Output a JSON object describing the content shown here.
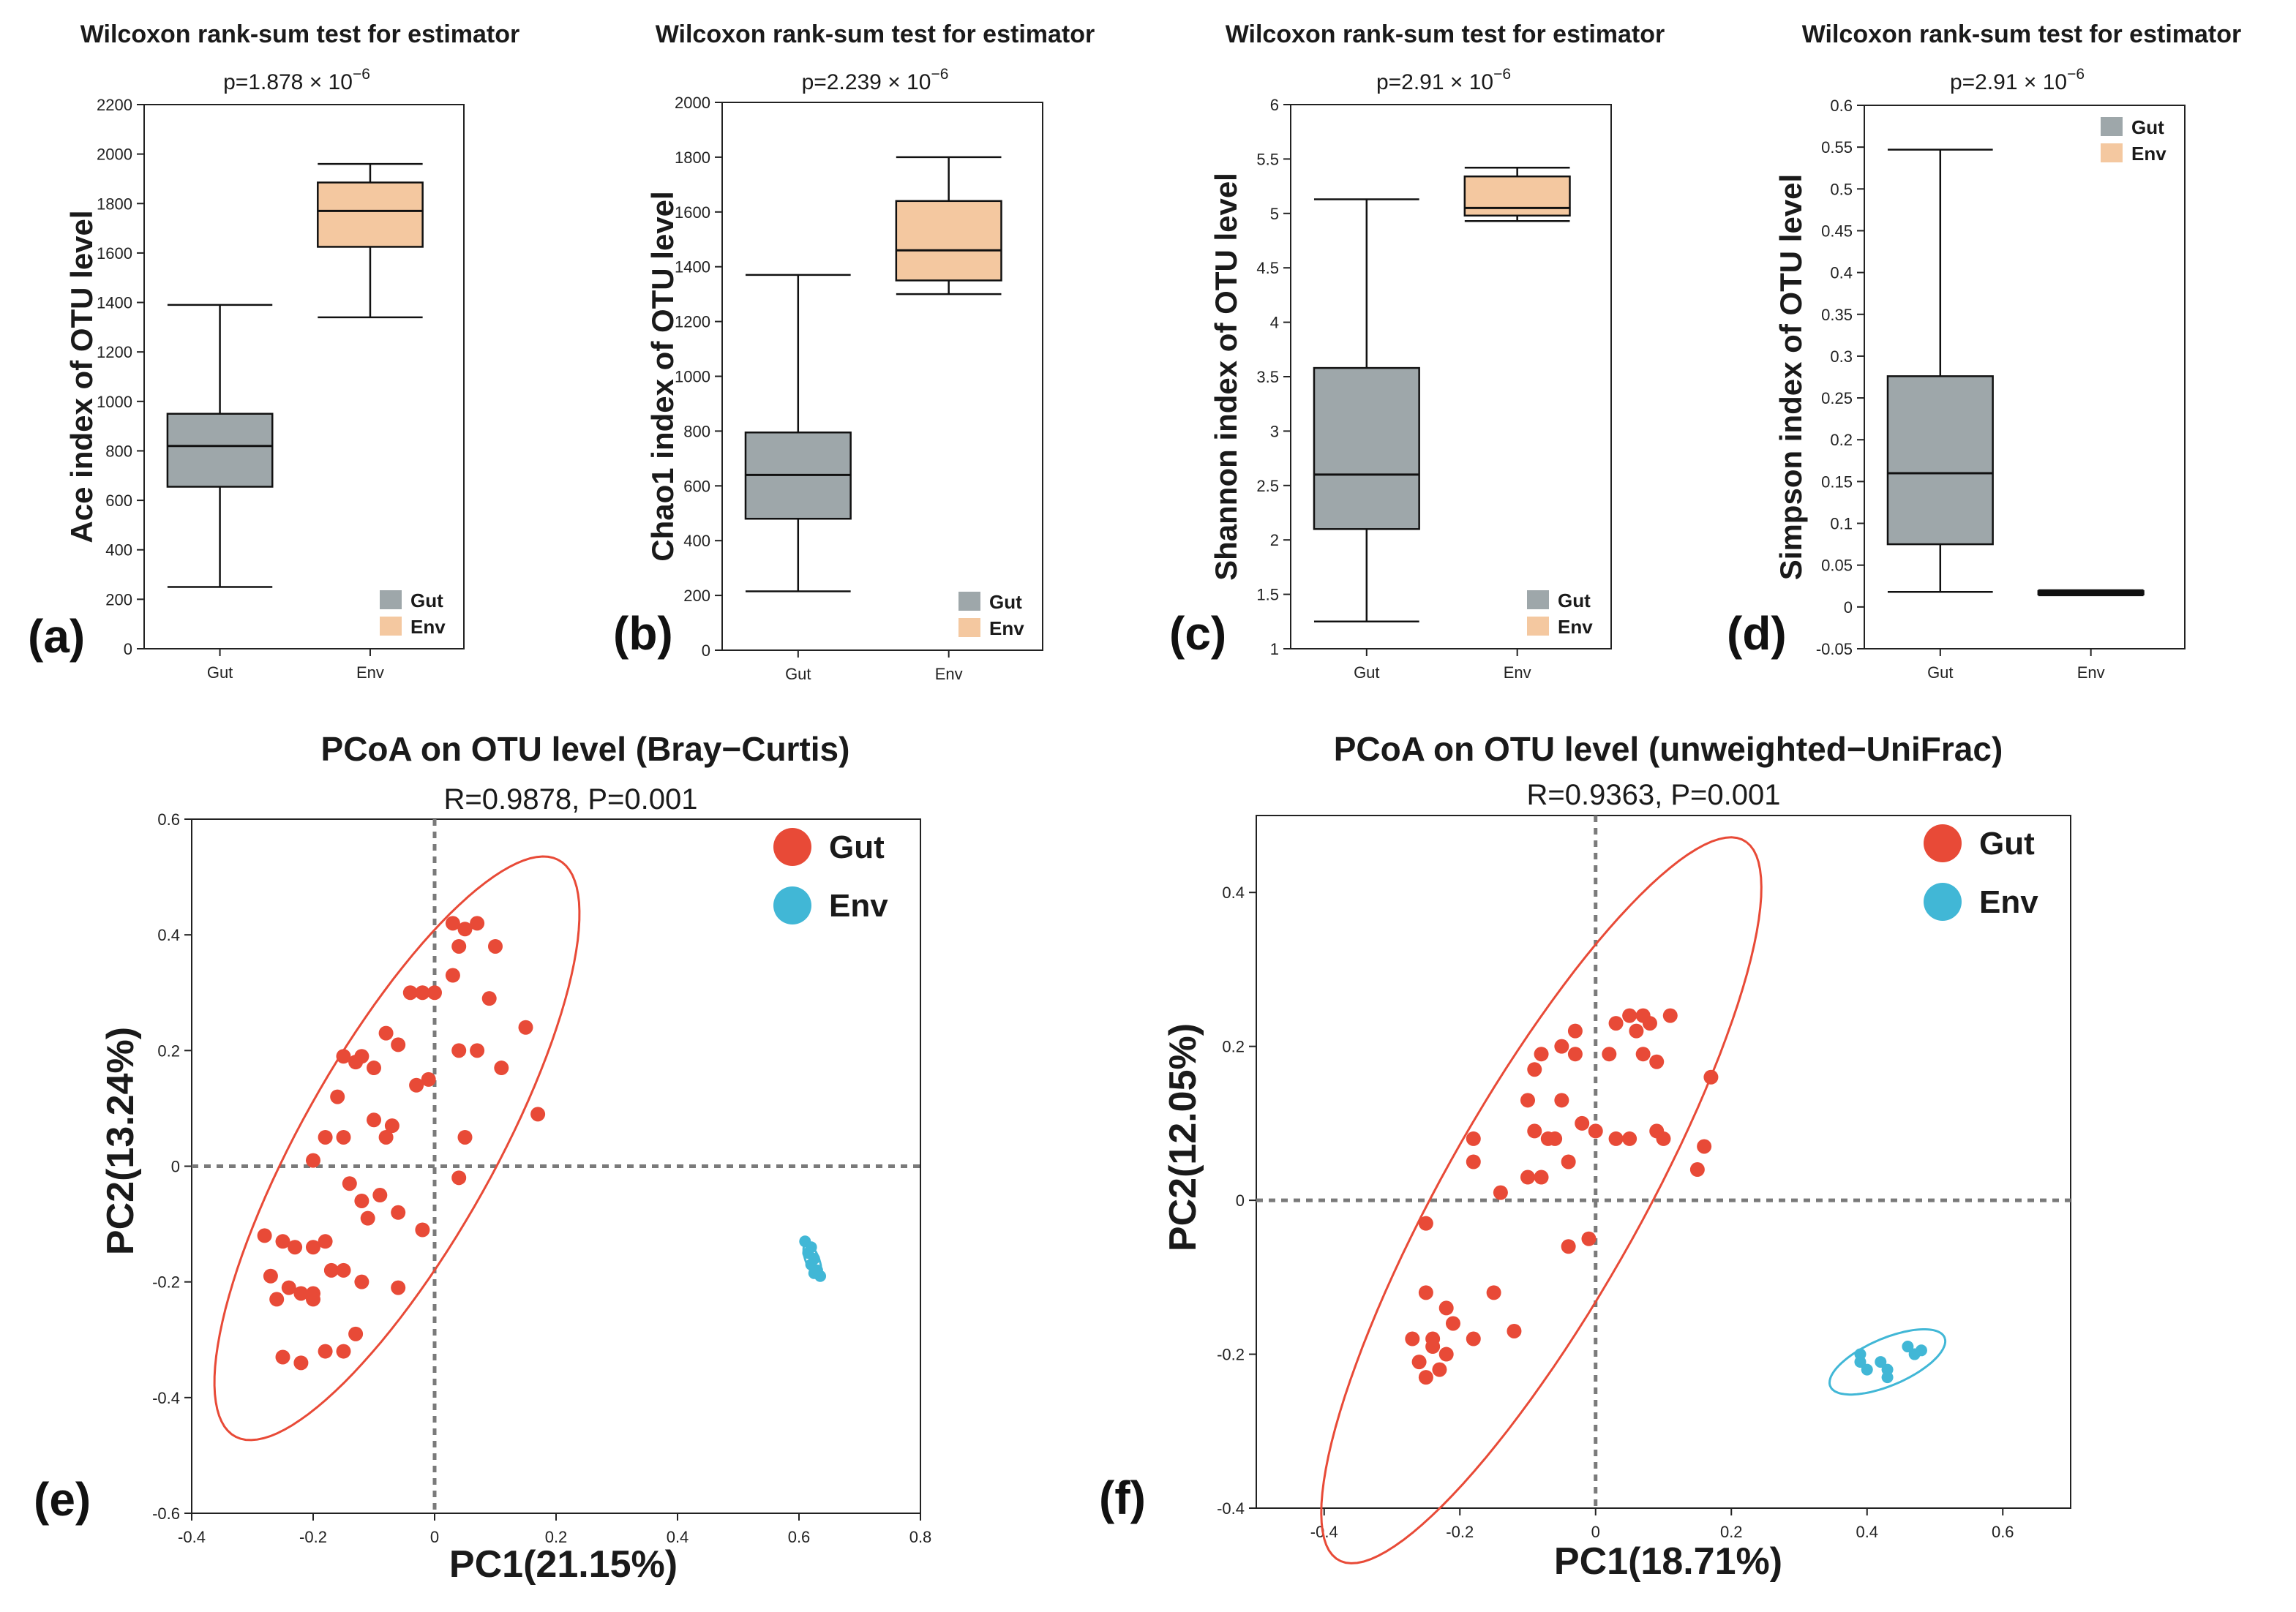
{
  "colors": {
    "gut_box": "#9ea7aa",
    "env_box": "#f4c8a0",
    "gut_point": "#e84a37",
    "env_point": "#41b7d6",
    "axis": "#222222",
    "ref": "#7a7a7a"
  },
  "chart_data": [
    {
      "panel": "(a)",
      "type": "box",
      "title": "Wilcoxon rank-sum test for estimator",
      "subtitle": "p=1.878 × 10",
      "sup": "−6",
      "ylabel": "Ace index of OTU level",
      "categories": [
        "Gut",
        "Env"
      ],
      "ylim": [
        0,
        2200
      ],
      "yticks": [
        0,
        200,
        400,
        600,
        800,
        1000,
        1200,
        1400,
        1600,
        1800,
        2000,
        2200
      ],
      "ytick_labels": [
        "0",
        "200",
        "400",
        "600",
        "800",
        "1000",
        "1200",
        "1400",
        "1600",
        "1800",
        "2000",
        "2200"
      ],
      "boxes": [
        {
          "name": "Gut",
          "min": 250,
          "q1": 655,
          "median": 820,
          "q3": 950,
          "max": 1390
        },
        {
          "name": "Env",
          "min": 1340,
          "q1": 1625,
          "median": 1770,
          "q3": 1885,
          "max": 1960
        }
      ],
      "legend": [
        "Gut",
        "Env"
      ],
      "legend_pos": "bottom-right"
    },
    {
      "panel": "(b)",
      "type": "box",
      "title": "Wilcoxon rank-sum test for estimator",
      "subtitle": "p=2.239 × 10",
      "sup": "−6",
      "ylabel": "Chao1 index of OTU level",
      "categories": [
        "Gut",
        "Env"
      ],
      "ylim": [
        0,
        2000
      ],
      "yticks": [
        0,
        200,
        400,
        600,
        800,
        1000,
        1200,
        1400,
        1600,
        1800,
        2000
      ],
      "ytick_labels": [
        "0",
        "200",
        "400",
        "600",
        "800",
        "1000",
        "1200",
        "1400",
        "1600",
        "1800",
        "2000"
      ],
      "boxes": [
        {
          "name": "Gut",
          "min": 215,
          "q1": 480,
          "median": 640,
          "q3": 795,
          "max": 1370
        },
        {
          "name": "Env",
          "min": 1300,
          "q1": 1350,
          "median": 1460,
          "q3": 1640,
          "max": 1800
        }
      ],
      "legend": [
        "Gut",
        "Env"
      ],
      "legend_pos": "bottom-right"
    },
    {
      "panel": "(c)",
      "type": "box",
      "title": "Wilcoxon rank-sum test for estimator",
      "subtitle": "p=2.91 × 10",
      "sup": "−6",
      "ylabel": "Shannon index of OTU level",
      "categories": [
        "Gut",
        "Env"
      ],
      "ylim": [
        1,
        6
      ],
      "yticks": [
        1,
        1.5,
        2,
        2.5,
        3,
        3.5,
        4,
        4.5,
        5,
        5.5,
        6
      ],
      "ytick_labels": [
        "1",
        "1.5",
        "2",
        "2.5",
        "3",
        "3.5",
        "4",
        "4.5",
        "5",
        "5.5",
        "6"
      ],
      "boxes": [
        {
          "name": "Gut",
          "min": 1.25,
          "q1": 2.1,
          "median": 2.6,
          "q3": 3.58,
          "max": 5.13
        },
        {
          "name": "Env",
          "min": 4.93,
          "q1": 4.98,
          "median": 5.05,
          "q3": 5.34,
          "max": 5.42
        }
      ],
      "legend": [
        "Gut",
        "Env"
      ],
      "legend_pos": "bottom-right"
    },
    {
      "panel": "(d)",
      "type": "box",
      "title": "Wilcoxon rank-sum test for estimator",
      "subtitle": "p=2.91 × 10",
      "sup": "−6",
      "ylabel": "Simpson index of OTU level",
      "categories": [
        "Gut",
        "Env"
      ],
      "ylim": [
        -0.05,
        0.6
      ],
      "yticks": [
        -0.05,
        0,
        0.05,
        0.1,
        0.15,
        0.2,
        0.25,
        0.3,
        0.35,
        0.4,
        0.45,
        0.5,
        0.55,
        0.6
      ],
      "ytick_labels": [
        "-0.05",
        "0",
        "0.05",
        "0.1",
        "0.15",
        "0.2",
        "0.25",
        "0.3",
        "0.35",
        "0.4",
        "0.45",
        "0.5",
        "0.55",
        "0.6"
      ],
      "boxes": [
        {
          "name": "Gut",
          "min": 0.018,
          "q1": 0.075,
          "median": 0.16,
          "q3": 0.276,
          "max": 0.547
        },
        {
          "name": "Env",
          "min": 0.014,
          "q1": 0.015,
          "median": 0.017,
          "q3": 0.019,
          "max": 0.02
        }
      ],
      "legend": [
        "Gut",
        "Env"
      ],
      "legend_pos": "top-right"
    },
    {
      "panel": "(e)",
      "type": "scatter",
      "title": "PCoA on OTU level (Bray−Curtis)",
      "subtitle": "R=0.9878, P=0.001",
      "xlabel": "PC1(21.15%)",
      "ylabel": "PC2(13.24%)",
      "xlim": [
        -0.4,
        0.8
      ],
      "ylim": [
        -0.6,
        0.6
      ],
      "xticks": [
        -0.4,
        -0.2,
        0,
        0.2,
        0.4,
        0.6,
        0.8
      ],
      "xtick_labels": [
        "-0.4",
        "-0.2",
        "0",
        "0.2",
        "0.4",
        "0.6",
        "0.8"
      ],
      "yticks": [
        -0.6,
        -0.4,
        -0.2,
        0,
        0.2,
        0.4,
        0.6
      ],
      "ytick_labels": [
        "-0.6",
        "-0.4",
        "-0.2",
        "0",
        "0.2",
        "0.4",
        "0.6"
      ],
      "legend": [
        "Gut",
        "Env"
      ],
      "legend_pos": "top-right",
      "series": [
        {
          "name": "Gut",
          "points": [
            [
              0.03,
              0.42
            ],
            [
              0.05,
              0.41
            ],
            [
              0.07,
              0.42
            ],
            [
              0.04,
              0.38
            ],
            [
              0.1,
              0.38
            ],
            [
              0.03,
              0.33
            ],
            [
              -0.04,
              0.3
            ],
            [
              -0.02,
              0.3
            ],
            [
              0,
              0.3
            ],
            [
              0.09,
              0.29
            ],
            [
              0.15,
              0.24
            ],
            [
              -0.08,
              0.23
            ],
            [
              -0.15,
              0.19
            ],
            [
              -0.12,
              0.19
            ],
            [
              -0.06,
              0.21
            ],
            [
              -0.1,
              0.17
            ],
            [
              -0.13,
              0.18
            ],
            [
              0.07,
              0.2
            ],
            [
              0.11,
              0.17
            ],
            [
              0.04,
              0.2
            ],
            [
              -0.16,
              0.12
            ],
            [
              -0.03,
              0.14
            ],
            [
              -0.01,
              0.15
            ],
            [
              0.17,
              0.09
            ],
            [
              -0.1,
              0.08
            ],
            [
              -0.07,
              0.07
            ],
            [
              -0.08,
              0.05
            ],
            [
              -0.15,
              0.05
            ],
            [
              -0.18,
              0.05
            ],
            [
              0.05,
              0.05
            ],
            [
              -0.2,
              0.01
            ],
            [
              0.04,
              -0.02
            ],
            [
              -0.14,
              -0.03
            ],
            [
              -0.12,
              -0.06
            ],
            [
              -0.09,
              -0.05
            ],
            [
              -0.11,
              -0.09
            ],
            [
              -0.06,
              -0.08
            ],
            [
              -0.02,
              -0.11
            ],
            [
              -0.25,
              -0.13
            ],
            [
              -0.23,
              -0.14
            ],
            [
              -0.2,
              -0.14
            ],
            [
              -0.18,
              -0.13
            ],
            [
              -0.28,
              -0.12
            ],
            [
              -0.17,
              -0.18
            ],
            [
              -0.15,
              -0.18
            ],
            [
              -0.27,
              -0.19
            ],
            [
              -0.24,
              -0.21
            ],
            [
              -0.2,
              -0.22
            ],
            [
              -0.22,
              -0.22
            ],
            [
              -0.26,
              -0.23
            ],
            [
              -0.12,
              -0.2
            ],
            [
              -0.06,
              -0.21
            ],
            [
              -0.2,
              -0.23
            ],
            [
              -0.13,
              -0.29
            ],
            [
              -0.15,
              -0.32
            ],
            [
              -0.25,
              -0.33
            ],
            [
              -0.22,
              -0.34
            ],
            [
              -0.18,
              -0.32
            ]
          ]
        },
        {
          "name": "Env",
          "points": [
            [
              0.61,
              -0.13
            ],
            [
              0.62,
              -0.14
            ],
            [
              0.615,
              -0.15
            ],
            [
              0.625,
              -0.16
            ],
            [
              0.62,
              -0.17
            ],
            [
              0.63,
              -0.18
            ],
            [
              0.625,
              -0.185
            ],
            [
              0.635,
              -0.19
            ]
          ]
        }
      ],
      "ellipses": [
        {
          "name": "Gut",
          "center": [
            -0.062,
            0.031
          ],
          "semi_axes": [
            0.565,
            0.16
          ],
          "angle_deg": 62
        },
        {
          "name": "Env",
          "center": [
            0.622,
            -0.162
          ],
          "semi_axes": [
            0.03,
            0.011
          ],
          "angle_deg": -70
        }
      ]
    },
    {
      "panel": "(f)",
      "type": "scatter",
      "title": "PCoA on OTU level (unweighted−UniFrac)",
      "subtitle": "R=0.9363, P=0.001",
      "xlabel": "PC1(18.71%)",
      "ylabel": "PC2(12.05%)",
      "xlim": [
        -0.5,
        0.7
      ],
      "ylim": [
        -0.4,
        0.5
      ],
      "xticks": [
        -0.4,
        -0.2,
        0,
        0.2,
        0.4,
        0.6
      ],
      "xtick_labels": [
        "-0.4",
        "-0.2",
        "0",
        "0.2",
        "0.4",
        "0.6"
      ],
      "yticks": [
        -0.4,
        -0.2,
        0,
        0.2,
        0.4
      ],
      "ytick_labels": [
        "-0.4",
        "-0.2",
        "0",
        "0.2",
        "0.4"
      ],
      "legend": [
        "Gut",
        "Env"
      ],
      "legend_pos": "top-right",
      "series": [
        {
          "name": "Gut",
          "points": [
            [
              0.03,
              0.23
            ],
            [
              0.05,
              0.24
            ],
            [
              0.07,
              0.24
            ],
            [
              0.08,
              0.23
            ],
            [
              0.11,
              0.24
            ],
            [
              -0.03,
              0.22
            ],
            [
              -0.05,
              0.2
            ],
            [
              -0.03,
              0.19
            ],
            [
              0.06,
              0.22
            ],
            [
              0.07,
              0.19
            ],
            [
              0.02,
              0.19
            ],
            [
              -0.08,
              0.19
            ],
            [
              -0.09,
              0.17
            ],
            [
              0.09,
              0.18
            ],
            [
              0.17,
              0.16
            ],
            [
              -0.1,
              0.13
            ],
            [
              -0.05,
              0.13
            ],
            [
              -0.02,
              0.1
            ],
            [
              0,
              0.09
            ],
            [
              0.03,
              0.08
            ],
            [
              0.05,
              0.08
            ],
            [
              0.09,
              0.09
            ],
            [
              0.1,
              0.08
            ],
            [
              -0.09,
              0.09
            ],
            [
              -0.06,
              0.08
            ],
            [
              -0.07,
              0.08
            ],
            [
              -0.18,
              0.08
            ],
            [
              0.16,
              0.07
            ],
            [
              -0.04,
              0.05
            ],
            [
              0.15,
              0.04
            ],
            [
              -0.18,
              0.05
            ],
            [
              -0.08,
              0.03
            ],
            [
              -0.1,
              0.03
            ],
            [
              -0.14,
              0.01
            ],
            [
              -0.25,
              -0.03
            ],
            [
              -0.01,
              -0.05
            ],
            [
              -0.04,
              -0.06
            ],
            [
              -0.15,
              -0.12
            ],
            [
              -0.12,
              -0.17
            ],
            [
              -0.25,
              -0.12
            ],
            [
              -0.22,
              -0.14
            ],
            [
              -0.18,
              -0.18
            ],
            [
              -0.27,
              -0.18
            ],
            [
              -0.24,
              -0.19
            ],
            [
              -0.22,
              -0.2
            ],
            [
              -0.26,
              -0.21
            ],
            [
              -0.23,
              -0.22
            ],
            [
              -0.25,
              -0.23
            ],
            [
              -0.24,
              -0.18
            ],
            [
              -0.21,
              -0.16
            ]
          ]
        },
        {
          "name": "Env",
          "points": [
            [
              0.39,
              -0.21
            ],
            [
              0.4,
              -0.22
            ],
            [
              0.42,
              -0.21
            ],
            [
              0.43,
              -0.22
            ],
            [
              0.43,
              -0.23
            ],
            [
              0.46,
              -0.19
            ],
            [
              0.47,
              -0.2
            ],
            [
              0.48,
              -0.195
            ],
            [
              0.39,
              -0.2
            ]
          ]
        }
      ],
      "ellipses": [
        {
          "name": "Gut",
          "center": [
            -0.08,
            0.0
          ],
          "semi_axes": [
            0.555,
            0.14
          ],
          "angle_deg": 57
        },
        {
          "name": "Env",
          "center": [
            0.43,
            -0.21
          ],
          "semi_axes": [
            0.09,
            0.031
          ],
          "angle_deg": 20
        }
      ]
    }
  ]
}
